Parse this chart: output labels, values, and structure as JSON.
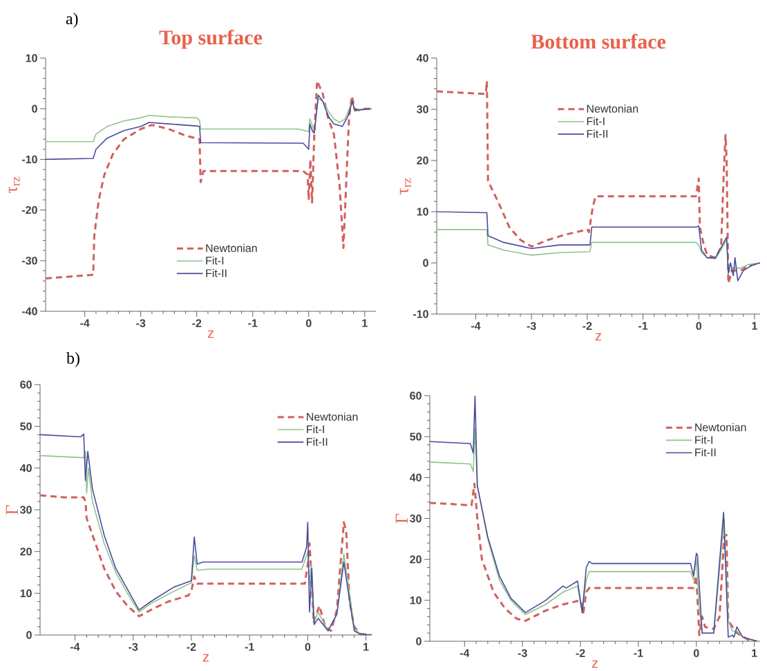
{
  "chart_data": [
    {
      "type": "line",
      "title": "Top surface",
      "xlabel": "z",
      "ylabel": "τ$_{rz}$",
      "annotations": [
        "a)"
      ],
      "xlim": [
        -4.7,
        1.2
      ],
      "ylim": [
        -40,
        10
      ],
      "xticks": [
        -4,
        -3,
        -2,
        -1,
        0,
        1
      ],
      "yticks": [
        -40,
        -30,
        -20,
        -10,
        0,
        10
      ],
      "legend": "bottom",
      "grid": false,
      "series": [
        {
          "name": "Newtonian",
          "color": "#d06060",
          "line_style": "dashed",
          "x": [
            -4.7,
            -3.85,
            -3.83,
            -3.75,
            -3.65,
            -3.5,
            -3.3,
            -3.0,
            -2.8,
            -2.5,
            -2.2,
            -1.95,
            -1.93,
            -1.88,
            -0.1,
            -0.02,
            0.0,
            0.03,
            0.06,
            0.1,
            0.15,
            0.25,
            0.35,
            0.45,
            0.55,
            0.62,
            0.68,
            0.72,
            0.77,
            0.82,
            0.9,
            1.0,
            1.12
          ],
          "values": [
            -33.5,
            -32.8,
            -25,
            -18,
            -13,
            -9,
            -6,
            -4,
            -3.2,
            -4,
            -5.3,
            -6,
            -14.5,
            -12.3,
            -12.3,
            -13,
            -18,
            -10,
            -18.5,
            -5,
            5.5,
            3,
            -2,
            -5,
            -15,
            -27.5,
            -12,
            -2,
            2.5,
            0,
            -0.3,
            0,
            0
          ]
        },
        {
          "name": "Fit-I",
          "color": "#8ec48a",
          "line_style": "solid",
          "x": [
            -4.7,
            -3.85,
            -3.8,
            -3.6,
            -3.3,
            -3.0,
            -2.85,
            -2.5,
            -2.0,
            -1.95,
            -1.93,
            -0.2,
            0,
            0.02,
            0.07,
            0.1,
            0.17,
            0.25,
            0.35,
            0.45,
            0.55,
            0.65,
            0.78,
            0.82,
            0.9,
            1.12
          ],
          "values": [
            -6.5,
            -6.5,
            -5,
            -3.5,
            -2.4,
            -1.8,
            -1.3,
            -1.6,
            -1.8,
            -2.3,
            -4,
            -4,
            -4.5,
            -2,
            -3.5,
            -4.5,
            2,
            1.5,
            -0.5,
            -2,
            -2.7,
            -2,
            1.5,
            -0.5,
            -0.3,
            0
          ]
        },
        {
          "name": "Fit-II",
          "color": "#4a4a9c",
          "line_style": "solid",
          "x": [
            -4.7,
            -3.85,
            -3.8,
            -3.6,
            -3.3,
            -3.0,
            -2.85,
            -2.5,
            -2.0,
            -1.95,
            -1.93,
            -0.1,
            0,
            0.02,
            0.07,
            0.1,
            0.17,
            0.25,
            0.35,
            0.45,
            0.6,
            0.7,
            0.78,
            0.82,
            0.9,
            1.12
          ],
          "values": [
            -10,
            -9.8,
            -8,
            -5.8,
            -4.3,
            -3.5,
            -2.7,
            -3,
            -3.4,
            -3.5,
            -6.7,
            -6.8,
            -8,
            -3,
            -4.5,
            -4.8,
            2.7,
            1.5,
            -1.5,
            -3,
            -3.5,
            -1.5,
            1.5,
            -0.3,
            -0.2,
            0
          ]
        }
      ]
    },
    {
      "type": "line",
      "title": "Bottom surface",
      "xlabel": "z",
      "ylabel": "τ$_{rz}$",
      "xlim": [
        -4.7,
        1.1
      ],
      "ylim": [
        -10,
        40
      ],
      "xticks": [
        -4,
        -3,
        -2,
        -1,
        0,
        1
      ],
      "yticks": [
        -10,
        0,
        10,
        20,
        30,
        40
      ],
      "legend": "top",
      "grid": false,
      "series": [
        {
          "name": "Newtonian",
          "color": "#d06060",
          "line_style": "dashed",
          "x": [
            -4.7,
            -3.82,
            -3.8,
            -3.78,
            -3.6,
            -3.4,
            -3.2,
            -3.0,
            -2.7,
            -2.4,
            -2.0,
            -1.97,
            -1.9,
            -1.85,
            -0.05,
            0,
            0.02,
            0.08,
            0.15,
            0.3,
            0.4,
            0.45,
            0.48,
            0.5,
            0.53,
            0.6,
            0.75,
            0.9,
            1.1
          ],
          "values": [
            33.5,
            33,
            35.5,
            16,
            12,
            7,
            4.5,
            3.2,
            4.5,
            5.5,
            6.5,
            6,
            11,
            13,
            13,
            16.5,
            7,
            4,
            1.5,
            1,
            3,
            18,
            25,
            20,
            -4,
            -1.5,
            -1.5,
            -0.5,
            0
          ]
        },
        {
          "name": "Fit-I",
          "color": "#8ec48a",
          "line_style": "solid",
          "x": [
            -4.7,
            -3.8,
            -3.78,
            -3.5,
            -3.0,
            -2.5,
            -1.95,
            -1.92,
            -0.05,
            0,
            0.05,
            0.15,
            0.3,
            0.45,
            0.5,
            0.53,
            0.6,
            0.75,
            0.9,
            1.1
          ],
          "values": [
            6.5,
            6.5,
            3.5,
            2.5,
            1.5,
            2,
            2.2,
            4,
            4,
            3.5,
            2,
            1,
            0.8,
            3.5,
            4.5,
            -2,
            -1,
            -1,
            -0.3,
            0
          ]
        },
        {
          "name": "Fit-II",
          "color": "#4a4a9c",
          "line_style": "solid",
          "x": [
            -4.7,
            -3.8,
            -3.78,
            -3.5,
            -3.0,
            -2.5,
            -1.95,
            -1.92,
            -0.05,
            0,
            0.05,
            0.15,
            0.3,
            0.45,
            0.5,
            0.53,
            0.57,
            0.62,
            0.65,
            0.7,
            0.8,
            0.95,
            1.1
          ],
          "values": [
            10,
            9.8,
            5.3,
            4,
            2.8,
            3.5,
            3.5,
            7,
            7,
            7.2,
            2.5,
            1,
            1,
            4,
            5,
            -2,
            0,
            -2.5,
            1,
            -3.5,
            -1.5,
            -0.5,
            0
          ]
        }
      ]
    },
    {
      "type": "line",
      "xlabel": "z",
      "ylabel": "Γ",
      "annotations": [
        "b)"
      ],
      "xlim": [
        -4.6,
        1.1
      ],
      "ylim": [
        0,
        60
      ],
      "xticks": [
        -4,
        -3,
        -2,
        -1,
        0,
        1
      ],
      "yticks": [
        0,
        10,
        20,
        30,
        40,
        50,
        60
      ],
      "legend": "top right",
      "grid": false,
      "series": [
        {
          "name": "Newtonian",
          "color": "#d06060",
          "line_style": "dashed",
          "x": [
            -4.6,
            -4.2,
            -3.85,
            -3.82,
            -3.8,
            -3.7,
            -3.5,
            -3.3,
            -3.1,
            -2.9,
            -2.7,
            -2.4,
            -2.05,
            -2.0,
            -1.95,
            -1.9,
            -0.05,
            0,
            0.03,
            0.06,
            0.1,
            0.2,
            0.3,
            0.4,
            0.5,
            0.58,
            0.62,
            0.66,
            0.72,
            0.8,
            0.9,
            1.1
          ],
          "values": [
            33.5,
            33,
            33,
            32,
            28,
            24,
            16,
            10.5,
            7,
            4.5,
            6,
            8,
            9.5,
            10.5,
            14,
            12.3,
            12.3,
            17,
            22,
            15,
            3,
            7,
            2,
            1,
            6,
            20,
            27,
            25,
            8,
            2,
            0.3,
            0
          ]
        },
        {
          "name": "Fit-I",
          "color": "#8ec48a",
          "line_style": "solid",
          "x": [
            -4.6,
            -3.85,
            -3.82,
            -3.8,
            -3.77,
            -3.7,
            -3.5,
            -3.3,
            -3.1,
            -2.9,
            -2.7,
            -2.3,
            -2.0,
            -1.95,
            -1.9,
            -1.7,
            -0.1,
            0,
            0.03,
            0.06,
            0.1,
            0.18,
            0.35,
            0.5,
            0.62,
            0.7,
            0.8,
            0.9,
            1.1
          ],
          "values": [
            43,
            42.5,
            44,
            34,
            40,
            32,
            22,
            15,
            10,
            5.5,
            7.5,
            10.5,
            12.5,
            19,
            15.5,
            15.8,
            15.8,
            20,
            12,
            17,
            3,
            5.5,
            1,
            5,
            19.5,
            12,
            1.5,
            0.3,
            0
          ]
        },
        {
          "name": "Fit-II",
          "color": "#4a4a9c",
          "line_style": "solid",
          "x": [
            -4.6,
            -3.9,
            -3.85,
            -3.82,
            -3.78,
            -3.7,
            -3.5,
            -3.3,
            -3.1,
            -2.9,
            -2.7,
            -2.3,
            -2.0,
            -1.95,
            -1.9,
            -1.8,
            -0.1,
            -0.02,
            0,
            0.03,
            0.07,
            0.11,
            0.18,
            0.35,
            0.5,
            0.62,
            0.7,
            0.8,
            0.9,
            1.1
          ],
          "values": [
            48,
            47.5,
            48.2,
            37,
            44,
            35,
            24,
            16,
            11,
            6,
            8,
            11.5,
            13,
            23.5,
            17,
            17.5,
            17.5,
            21,
            27,
            5.5,
            16,
            2.5,
            4,
            1,
            5,
            17.5,
            10,
            1,
            0.2,
            0
          ]
        }
      ]
    },
    {
      "type": "line",
      "xlabel": "z",
      "ylabel": "Γ",
      "xlim": [
        -4.6,
        1.1
      ],
      "ylim": [
        0,
        60
      ],
      "xticks": [
        -4,
        -3,
        -2,
        -1,
        0,
        1
      ],
      "yticks": [
        0,
        10,
        20,
        30,
        40,
        50,
        60
      ],
      "legend": "top right",
      "grid": false,
      "series": [
        {
          "name": "Newtonian",
          "color": "#d06060",
          "line_style": "dashed",
          "x": [
            -4.6,
            -4.2,
            -3.88,
            -3.83,
            -3.78,
            -3.7,
            -3.5,
            -3.3,
            -3.1,
            -2.95,
            -2.6,
            -2.3,
            -2.0,
            -1.95,
            -1.9,
            -1.85,
            -0.05,
            0,
            0.05,
            0.1,
            0.15,
            0.3,
            0.4,
            0.48,
            0.52,
            0.55,
            0.7,
            0.8,
            0.9,
            1.05
          ],
          "values": [
            33.8,
            33.5,
            33.2,
            38.5,
            30,
            20,
            12,
            8,
            5.5,
            5,
            7.5,
            9,
            10,
            7,
            12,
            13,
            13,
            16,
            1.5,
            6,
            3.5,
            3,
            6,
            25.5,
            26,
            5,
            2,
            1.2,
            0.3,
            0
          ]
        },
        {
          "name": "Fit-I",
          "color": "#8ec48a",
          "line_style": "solid",
          "x": [
            -4.6,
            -3.9,
            -3.85,
            -3.82,
            -3.78,
            -3.6,
            -3.4,
            -3.2,
            -2.95,
            -2.6,
            -2.3,
            -2.05,
            -1.97,
            -1.9,
            -1.85,
            -0.1,
            -0.05,
            0,
            0.05,
            0.1,
            0.3,
            0.48,
            0.55,
            0.62,
            0.7,
            0.8,
            1.05
          ],
          "values": [
            43.8,
            43.3,
            41.5,
            52,
            38,
            25,
            15,
            10,
            6.5,
            9,
            12,
            13.5,
            7,
            15,
            17,
            17,
            15,
            20,
            8,
            2,
            2,
            30,
            5,
            2.5,
            2.5,
            1,
            0
          ]
        },
        {
          "name": "Fit-II",
          "color": "#4a4a9c",
          "line_style": "solid",
          "x": [
            -4.6,
            -3.9,
            -3.85,
            -3.82,
            -3.78,
            -3.6,
            -3.4,
            -3.2,
            -2.95,
            -2.6,
            -2.3,
            -2.25,
            -2.05,
            -1.97,
            -1.9,
            -1.85,
            -1.8,
            -0.1,
            -0.05,
            0,
            0.02,
            0.1,
            0.3,
            0.47,
            0.55,
            0.62,
            0.65,
            0.7,
            0.8,
            1.05
          ],
          "values": [
            48.8,
            48.3,
            46,
            60,
            38,
            25.5,
            16,
            10.5,
            7,
            10,
            13.5,
            13,
            14.7,
            7,
            18,
            19.5,
            19,
            19,
            16,
            21.5,
            21,
            2,
            2,
            31.5,
            1,
            1.5,
            1,
            3.5,
            1,
            0
          ]
        }
      ]
    }
  ]
}
